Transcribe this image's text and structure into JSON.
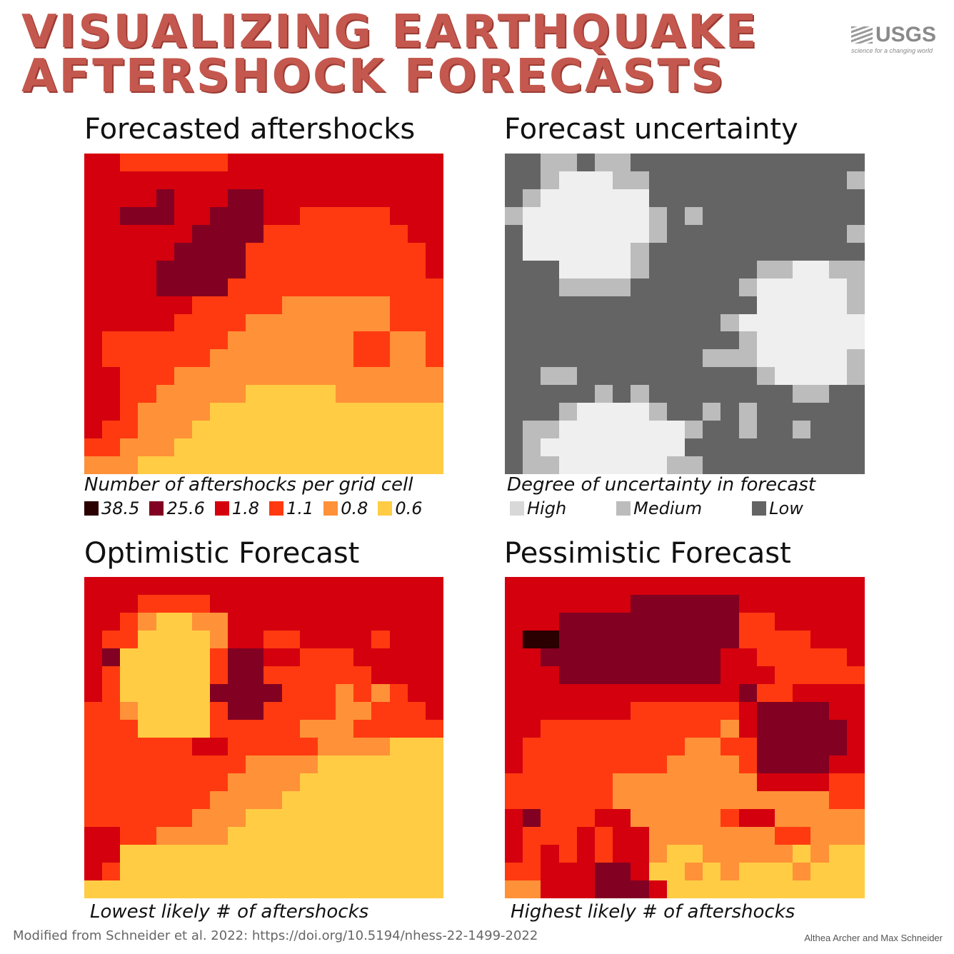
{
  "title": {
    "line1": "Visualizing Earthquake",
    "line2": "Aftershock forecasts"
  },
  "logo": {
    "name": "USGS",
    "tagline": "science for a changing world"
  },
  "colors": {
    "dark": "#2a0000",
    "maroon": "#820021",
    "red": "#d4000e",
    "orange_red": "#ff3a10",
    "orange": "#ff9138",
    "yellow": "#ffcc44",
    "unc_high": "#efefef",
    "unc_medium": "#bcbcbc",
    "unc_low": "#646464"
  },
  "legends": {
    "aftershocks": [
      {
        "label": "38.5",
        "color": "#2a0000"
      },
      {
        "label": "25.6",
        "color": "#820021"
      },
      {
        "label": "1.8",
        "color": "#d4000e"
      },
      {
        "label": "1.1",
        "color": "#ff3a10"
      },
      {
        "label": "0.8",
        "color": "#ff9138"
      },
      {
        "label": "0.6",
        "color": "#ffcc44"
      }
    ],
    "uncertainty": [
      {
        "label": "High",
        "color": "#d8d8d8"
      },
      {
        "label": "Medium",
        "color": "#bcbcbc"
      },
      {
        "label": "Low",
        "color": "#646464"
      }
    ]
  },
  "panels": {
    "forecast": {
      "title": "Forecasted aftershocks",
      "caption": "Number of aftershocks per grid cell"
    },
    "uncertainty": {
      "title": "Forecast uncertainty",
      "caption": "Degree of uncertainty in forecast"
    },
    "optimistic": {
      "title": "Optimistic Forecast",
      "caption": "Lowest likely # of aftershocks"
    },
    "pessimistic": {
      "title": "Pessimistic Forecast",
      "caption": "Highest likely # of aftershocks"
    }
  },
  "chart_data": [
    {
      "type": "heatmap",
      "title": "Forecasted aftershocks",
      "value_scale": {
        "a": 38.5,
        "b": 25.6,
        "2": 1.8,
        "3": 1.1,
        "4": 0.8,
        "5": 0.6
      },
      "grid": [
        "22333333222222222222",
        "22222222222222222222",
        "2222b222bb2222222222",
        "22bbb22bbb2233333222",
        "222222bbbb3333333322",
        "22222bbbb33333333332",
        "2222bbbbb33333333332",
        "2222bbbb333333333333",
        "22222233333444444333",
        "22222333344444444333",
        "23333333444444433443",
        "23333334444444433443",
        "22333444444444444444",
        "2233444445555544444",
        "22344445555555555555",
        "23344455555555555555",
        "33444555555555555555",
        "44455555555555555555"
      ]
    },
    {
      "type": "heatmap",
      "title": "Forecast uncertainty",
      "value_scale": {
        "H": "High",
        "M": "Medium",
        "L": "Low"
      },
      "grid": [
        "LLMMLMMLLLLLLLLLLLLL",
        "LLMHHHMMLLLLLLLLLLLM",
        "LMHHHHHHLLLLLLLLLLLL",
        "MHHHHHHHMLMLLLLLLLLL",
        "LHHHHHHHMLLLLLLLLLLM",
        "LHHHHHHMLLLLLLLLLLLL",
        "LLLHHHHMLLLLLLMMHHMM",
        "LLLMMMMLLLLLLMHHHHHM",
        "LLLLLLLLLLLLLLHHHHHM",
        "LLLLLLLLLLLLMHHHHHHH",
        "LLLLLLLLLLLLLMHHHHHH",
        "LLLLLLLLLLLMMMHHHHHM",
        "LLMMLLLLLLLLLLMHHHHM",
        "LLLLLMLMLLLLLLLLMMLL",
        "LLLMHHHHMLLMLMLLLLLL",
        "LMMHHHHHHHMLLMLLMLLL",
        "LMHHHHHHHHLLLLLLLLLL",
        "LMMHHHHHHMMLLLLLLLLL"
      ]
    },
    {
      "type": "heatmap",
      "title": "Optimistic Forecast",
      "value_scale": {
        "a": 38.5,
        "b": 25.6,
        "2": 1.8,
        "3": 1.1,
        "4": 0.8,
        "5": 0.6
      },
      "grid": [
        "22222222222222222222",
        "22233332222222222222",
        "22345544222222222222",
        "23355554223322223222",
        "2b555553bb2233322222",
        "23555553bb3333332222",
        "2355555bbbb333434322",
        "33455553bb3333443332",
        "33355553333344433333",
        "3333332233333444455",
        "33333333344445555555",
        "33333333444455555555",
        "33333334444555555555",
        "3333334445555555555",
        "2233444455555555555",
        "22555555555555555555",
        "23555555555555555555",
        "55555555555555555555"
      ]
    },
    {
      "type": "heatmap",
      "title": "Pessimistic Forecast",
      "value_scale": {
        "a": 38.5,
        "b": 25.6,
        "2": 1.8,
        "3": 1.1,
        "4": 0.8,
        "5": 0.6
      },
      "grid": [
        "22222222222222222222",
        "2222222bbbbbb2222222",
        "222bbbbbbbbbb3322222",
        "2aabbbbbbbbbb3333222",
        "22bbbbbbbbbb22333332",
        "222bbbbbbbbb22233333",
        "2222222222222b332222",
        "22222223333332bbbb22",
        "22333333333342bbbbb2",
        "23333333334433bbbbb2",
        "23333333344443bbbb22",
        "33333344444444222233",
        "3333334444444444443",
        "2b333224444432244444",
        "23332322444444433444",
        "2323232245544444545",
        "33222bb2554545554555",
        "44222bbb255555555555"
      ]
    }
  ],
  "footer": {
    "source": "Modified from Schneider et al. 2022: https://doi.org/10.5194/nhess-22-1499-2022",
    "credit": "Althea Archer and Max Schneider"
  }
}
